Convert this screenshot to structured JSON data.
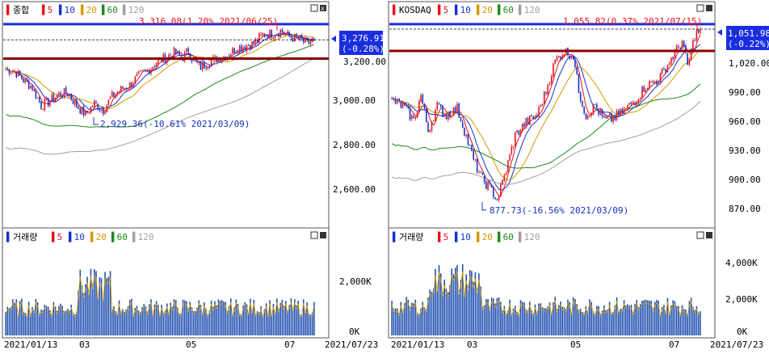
{
  "panels": [
    {
      "id": "kospi",
      "title": "종합",
      "ma_labels": [
        "5",
        "10",
        "20",
        "60",
        "120"
      ],
      "volume_title": "거래량",
      "high_annotation": "3,316.08(1.20% 2021/06/25)",
      "low_annotation": "2,929.36(-10.61% 2021/03/09)",
      "last_price": "3,276.91",
      "last_change": "(-0.28%)",
      "price_ticks": [
        "3,000.00",
        "2,800.00",
        "2,600.00"
      ],
      "volume_ticks": [
        "2,000K",
        "0K"
      ],
      "date_labels": [
        "2021/01/13",
        "03",
        "05",
        "07",
        "2021/07/23"
      ]
    },
    {
      "id": "kosdaq",
      "title": "KOSDAQ",
      "ma_labels": [
        "5",
        "10",
        "20",
        "60",
        "120"
      ],
      "volume_title": "거래량",
      "high_annotation": "1,055.82(0.37% 2021/07/15)",
      "low_annotation": "877.73(-16.56% 2021/03/09)",
      "last_price": "1,051.98",
      "last_change": "(-0.22%)",
      "price_ticks": [
        "1,020.00",
        "990.00",
        "960.00",
        "930.00",
        "900.00",
        "870.00"
      ],
      "volume_ticks": [
        "4,000K",
        "2,000K",
        "0K"
      ],
      "date_labels": [
        "2021/01/13",
        "03",
        "05",
        "07",
        "2021/07/23"
      ]
    }
  ],
  "colors": {
    "up": "#e8121b",
    "down": "#1530c8",
    "ma5": "#e8121b",
    "ma10": "#1530d0",
    "ma20": "#d49800",
    "ma60": "#1a8a1a",
    "ma120": "#a0a0a0",
    "support": "#8b0000",
    "resistance": "#1a2ee0",
    "volume": "#1f4fb0"
  },
  "chart_data": [
    {
      "type": "candlestick",
      "name": "종합",
      "start_date": "2021/01/13",
      "end_date": "2021/07/23",
      "close_path": [
        [
          0,
          3149
        ],
        [
          5,
          3140
        ],
        [
          10,
          3100
        ],
        [
          15,
          3070
        ],
        [
          20,
          2990
        ],
        [
          25,
          3010
        ],
        [
          30,
          3040
        ],
        [
          35,
          3045
        ],
        [
          40,
          2990
        ],
        [
          45,
          2950
        ],
        [
          50,
          3000
        ],
        [
          55,
          2970
        ],
        [
          60,
          3030
        ],
        [
          65,
          3060
        ],
        [
          70,
          3080
        ],
        [
          75,
          3120
        ],
        [
          80,
          3140
        ],
        [
          85,
          3180
        ],
        [
          90,
          3200
        ],
        [
          95,
          3220
        ],
        [
          100,
          3200
        ],
        [
          103,
          3230
        ],
        [
          106,
          3180
        ],
        [
          110,
          3160
        ],
        [
          115,
          3180
        ],
        [
          120,
          3200
        ],
        [
          125,
          3210
        ],
        [
          130,
          3240
        ],
        [
          135,
          3250
        ],
        [
          140,
          3260
        ],
        [
          145,
          3300
        ],
        [
          150,
          3305
        ],
        [
          155,
          3316
        ],
        [
          160,
          3290
        ],
        [
          165,
          3280
        ],
        [
          170,
          3260
        ],
        [
          174,
          3277
        ]
      ],
      "high": {
        "value": 3316.08,
        "date": "2021/06/25",
        "change_pct": 1.2
      },
      "low": {
        "value": 2929.36,
        "date": "2021/03/09",
        "change_pct": -10.61
      },
      "last": {
        "value": 3276.91,
        "change_pct": -0.28
      },
      "y_range": [
        2470,
        3380
      ],
      "lines": [
        3345,
        3195
      ],
      "moving_averages": [
        5,
        10,
        20,
        60,
        120
      ]
    },
    {
      "type": "candlestick",
      "name": "KOSDAQ",
      "start_date": "2021/01/13",
      "end_date": "2021/07/23",
      "close_path": [
        [
          0,
          980
        ],
        [
          6,
          975
        ],
        [
          12,
          960
        ],
        [
          16,
          985
        ],
        [
          20,
          950
        ],
        [
          25,
          975
        ],
        [
          30,
          965
        ],
        [
          36,
          972
        ],
        [
          40,
          950
        ],
        [
          45,
          920
        ],
        [
          50,
          900
        ],
        [
          55,
          890
        ],
        [
          58,
          880
        ],
        [
          63,
          910
        ],
        [
          68,
          945
        ],
        [
          74,
          958
        ],
        [
          80,
          965
        ],
        [
          85,
          990
        ],
        [
          90,
          1020
        ],
        [
          95,
          1030
        ],
        [
          100,
          1025
        ],
        [
          103,
          990
        ],
        [
          107,
          965
        ],
        [
          112,
          975
        ],
        [
          117,
          960
        ],
        [
          122,
          962
        ],
        [
          128,
          970
        ],
        [
          134,
          980
        ],
        [
          140,
          995
        ],
        [
          146,
          1000
        ],
        [
          150,
          1010
        ],
        [
          155,
          1025
        ],
        [
          160,
          1040
        ],
        [
          163,
          1015
        ],
        [
          167,
          1045
        ],
        [
          170,
          1052
        ]
      ],
      "high": {
        "value": 1055.82,
        "date": "2021/07/15",
        "change_pct": 0.37
      },
      "low": {
        "value": 877.73,
        "date": "2021/03/09",
        "change_pct": -16.56
      },
      "last": {
        "value": 1051.98,
        "change_pct": -0.22
      },
      "y_range": [
        855,
        1065
      ],
      "lines": [
        1057,
        1030
      ],
      "moving_averages": [
        5,
        10,
        20,
        60,
        120
      ]
    }
  ]
}
